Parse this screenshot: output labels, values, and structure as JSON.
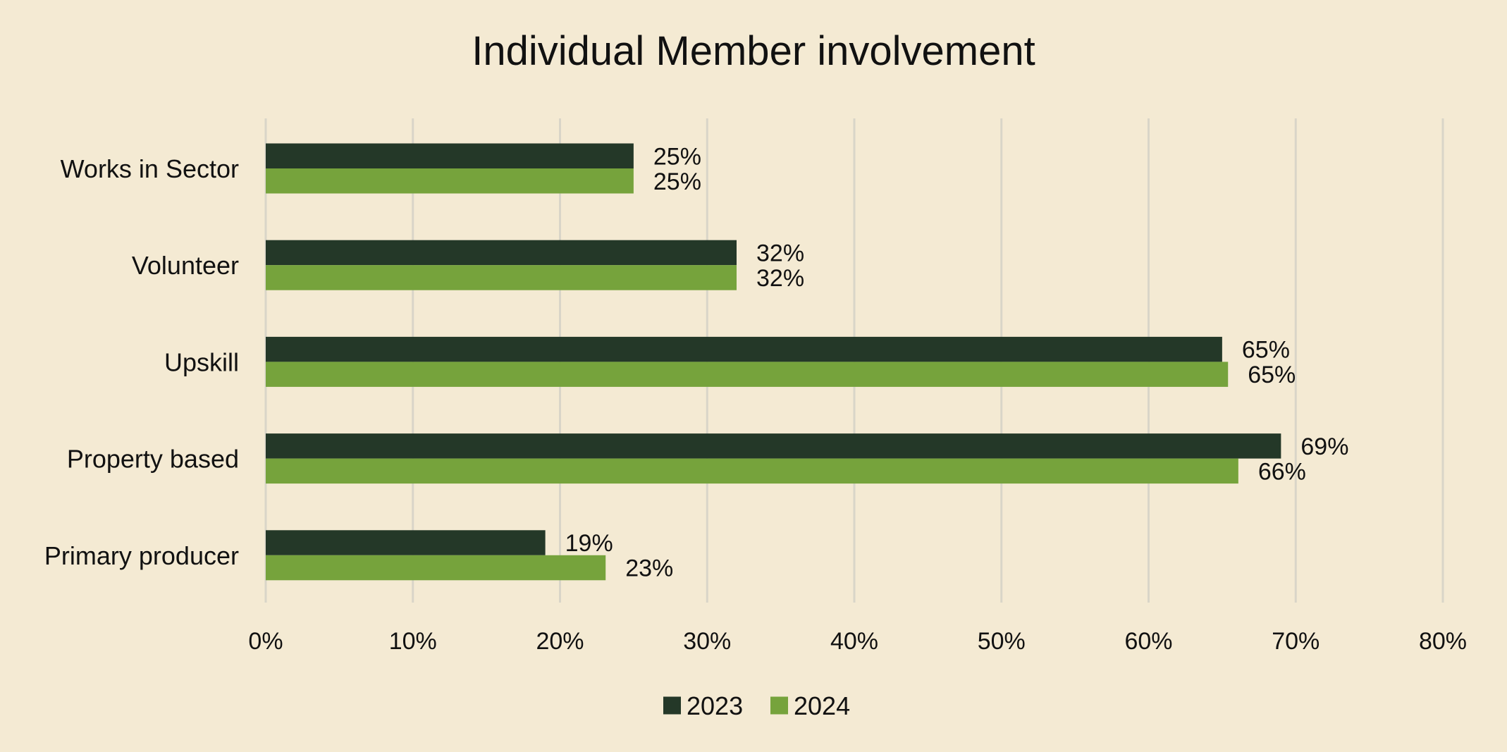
{
  "chart_data": {
    "type": "bar",
    "orientation": "horizontal",
    "title": "Individual Member involvement",
    "categories": [
      "Works in Sector",
      "Volunteer",
      "Upskill",
      "Property based",
      "Primary producer"
    ],
    "series": [
      {
        "name": "2023",
        "color": "#243828",
        "values": [
          25,
          32,
          65,
          69,
          19
        ]
      },
      {
        "name": "2024",
        "color": "#76a33c",
        "values": [
          25,
          32,
          65.4,
          66.1,
          23.1
        ]
      }
    ],
    "data_labels": [
      [
        "25%",
        "32%",
        "65%",
        "69%",
        "19%"
      ],
      [
        "25%",
        "32%",
        "65%",
        "66%",
        "23%"
      ]
    ],
    "xlim": [
      0,
      80
    ],
    "x_ticks": [
      0,
      10,
      20,
      30,
      40,
      50,
      60,
      70,
      80
    ],
    "x_tick_labels": [
      "0%",
      "10%",
      "20%",
      "30%",
      "40%",
      "50%",
      "60%",
      "70%",
      "80%"
    ],
    "grid": "vertical",
    "legend_position": "bottom"
  }
}
